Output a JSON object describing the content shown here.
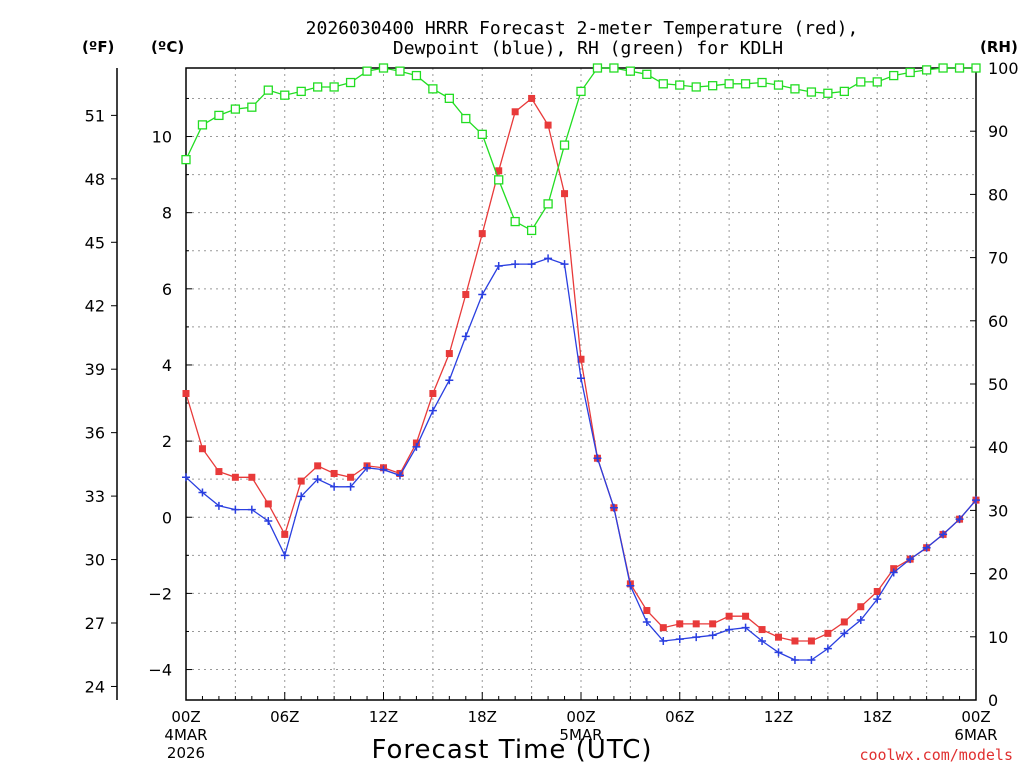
{
  "chart_data": {
    "type": "line",
    "title_line1": "2026030400 HRRR Forecast 2-meter Temperature (red),",
    "title_line2": "Dewpoint (blue), RH (green) for KDLH",
    "xlabel": "Forecast Time (UTC)",
    "credit": "coolwx.com/models",
    "units": {
      "left_f": "(ºF)",
      "left_c": "(ºC)",
      "right": "(RH)"
    },
    "x_ticks": [
      {
        "hour": 0,
        "label": "00Z",
        "sub1": "4MAR",
        "sub2": "2026"
      },
      {
        "hour": 6,
        "label": "06Z",
        "sub1": "",
        "sub2": ""
      },
      {
        "hour": 12,
        "label": "12Z",
        "sub1": "",
        "sub2": ""
      },
      {
        "hour": 18,
        "label": "18Z",
        "sub1": "",
        "sub2": ""
      },
      {
        "hour": 24,
        "label": "00Z",
        "sub1": "5MAR",
        "sub2": ""
      },
      {
        "hour": 30,
        "label": "06Z",
        "sub1": "",
        "sub2": ""
      },
      {
        "hour": 36,
        "label": "12Z",
        "sub1": "",
        "sub2": ""
      },
      {
        "hour": 42,
        "label": "18Z",
        "sub1": "",
        "sub2": ""
      },
      {
        "hour": 48,
        "label": "00Z",
        "sub1": "6MAR",
        "sub2": ""
      }
    ],
    "xlim": [
      0,
      48
    ],
    "ylim_c": [
      -4.8,
      11.8
    ],
    "ylim_rh": [
      0,
      100
    ],
    "y_ticks_c": [
      -4,
      -2,
      0,
      2,
      4,
      6,
      8,
      10
    ],
    "y_ticks_f": [
      24,
      27,
      30,
      33,
      36,
      39,
      42,
      45,
      48,
      51
    ],
    "y_ticks_rh": [
      0,
      10,
      20,
      30,
      40,
      50,
      60,
      70,
      80,
      90,
      100
    ],
    "grid": true,
    "series": [
      {
        "name": "Temperature",
        "color": "#e83a3a",
        "marker": "filled-square",
        "axis": "c",
        "values": [
          3.25,
          1.8,
          1.2,
          1.05,
          1.05,
          0.35,
          -0.45,
          0.95,
          1.35,
          1.15,
          1.05,
          1.35,
          1.3,
          1.15,
          1.95,
          3.25,
          4.3,
          5.85,
          7.45,
          9.1,
          10.65,
          11.0,
          10.3,
          8.5,
          4.15,
          1.55,
          0.25,
          -1.75,
          -2.45,
          -2.9,
          -2.8,
          -2.8,
          -2.8,
          -2.6,
          -2.6,
          -2.95,
          -3.15,
          -3.25,
          -3.25,
          -3.05,
          -2.75,
          -2.35,
          -1.95,
          -1.35,
          -1.1,
          -0.8,
          -0.45,
          -0.05,
          0.45
        ]
      },
      {
        "name": "Dewpoint",
        "color": "#2a3fe0",
        "marker": "plus",
        "axis": "c",
        "values": [
          1.05,
          0.65,
          0.3,
          0.2,
          0.2,
          -0.1,
          -1.0,
          0.55,
          1.0,
          0.8,
          0.8,
          1.3,
          1.25,
          1.1,
          1.85,
          2.8,
          3.6,
          4.75,
          5.85,
          6.6,
          6.65,
          6.65,
          6.8,
          6.65,
          3.65,
          1.55,
          0.25,
          -1.8,
          -2.75,
          -3.25,
          -3.2,
          -3.15,
          -3.1,
          -2.95,
          -2.9,
          -3.25,
          -3.55,
          -3.75,
          -3.75,
          -3.45,
          -3.05,
          -2.7,
          -2.15,
          -1.45,
          -1.1,
          -0.8,
          -0.45,
          -0.05,
          0.45
        ]
      },
      {
        "name": "RH",
        "color": "#22dd22",
        "marker": "open-square",
        "axis": "rh",
        "values": [
          85.5,
          91,
          92.5,
          93.5,
          93.8,
          96.5,
          95.7,
          96.3,
          97,
          97,
          97.7,
          99.5,
          100,
          99.5,
          98.8,
          96.7,
          95.2,
          92,
          89.5,
          82.3,
          75.7,
          74.3,
          78.5,
          87.8,
          96.3,
          100,
          100,
          99.5,
          99,
          97.5,
          97.3,
          97,
          97.2,
          97.5,
          97.5,
          97.7,
          97.3,
          96.7,
          96.2,
          96,
          96.3,
          97.8,
          97.8,
          98.8,
          99.3,
          99.7,
          100,
          100,
          100
        ]
      }
    ]
  }
}
